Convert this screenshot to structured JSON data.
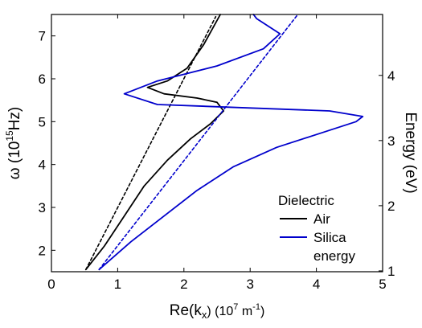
{
  "chart_data": {
    "type": "line",
    "title": "",
    "xlabel": {
      "base": "Re(k",
      "sub": "x",
      "mid": ") (10",
      "sup": "7",
      "tail": " m",
      "sup2": "-1",
      "end": ")"
    },
    "ylabel": {
      "base": "ω (10",
      "sup": "15",
      "tail": "Hz)"
    },
    "y2label": "Energy (eV)",
    "xlim": [
      0,
      5
    ],
    "ylim": [
      1.5,
      7.5
    ],
    "y2lim": [
      0.987,
      4.935
    ],
    "x_ticks": [
      "0",
      "1",
      "2",
      "3",
      "4",
      "5"
    ],
    "y_ticks": [
      "2",
      "3",
      "4",
      "5",
      "6",
      "7"
    ],
    "y2_ticks": [
      "1",
      "2",
      "3",
      "4"
    ],
    "legend": {
      "title": "Dielectric",
      "entries": [
        "Air",
        "Silica"
      ],
      "footer": "energy",
      "position": "bottom-right"
    },
    "series": [
      {
        "name": "Air",
        "color": "#000000",
        "style": "solid",
        "points": [
          [
            0.52,
            1.55
          ],
          [
            0.8,
            2.1
          ],
          [
            1.1,
            2.8
          ],
          [
            1.4,
            3.5
          ],
          [
            1.75,
            4.1
          ],
          [
            2.1,
            4.6
          ],
          [
            2.4,
            4.95
          ],
          [
            2.6,
            5.25
          ],
          [
            2.5,
            5.45
          ],
          [
            2.2,
            5.55
          ],
          [
            1.7,
            5.65
          ],
          [
            1.45,
            5.8
          ],
          [
            1.75,
            5.95
          ],
          [
            2.05,
            6.25
          ],
          [
            2.3,
            6.8
          ],
          [
            2.55,
            7.5
          ]
        ]
      },
      {
        "name": "Air light line",
        "color": "#000000",
        "style": "dashed",
        "points": [
          [
            0.52,
            1.55
          ],
          [
            2.48,
            7.45
          ]
        ]
      },
      {
        "name": "Silica",
        "color": "#0000cc",
        "style": "solid",
        "points": [
          [
            0.72,
            1.55
          ],
          [
            1.2,
            2.2
          ],
          [
            1.7,
            2.8
          ],
          [
            2.2,
            3.4
          ],
          [
            2.75,
            3.95
          ],
          [
            3.4,
            4.4
          ],
          [
            4.1,
            4.75
          ],
          [
            4.6,
            5.0
          ],
          [
            4.7,
            5.12
          ],
          [
            4.2,
            5.25
          ],
          [
            3.0,
            5.32
          ],
          [
            1.6,
            5.4
          ],
          [
            1.1,
            5.65
          ],
          [
            1.6,
            5.95
          ],
          [
            2.5,
            6.3
          ],
          [
            3.2,
            6.7
          ],
          [
            3.45,
            7.05
          ],
          [
            3.1,
            7.4
          ],
          [
            3.05,
            7.5
          ]
        ]
      },
      {
        "name": "Silica light line",
        "color": "#0000cc",
        "style": "dashed",
        "points": [
          [
            0.72,
            1.55
          ],
          [
            3.72,
            7.5
          ]
        ]
      }
    ]
  }
}
